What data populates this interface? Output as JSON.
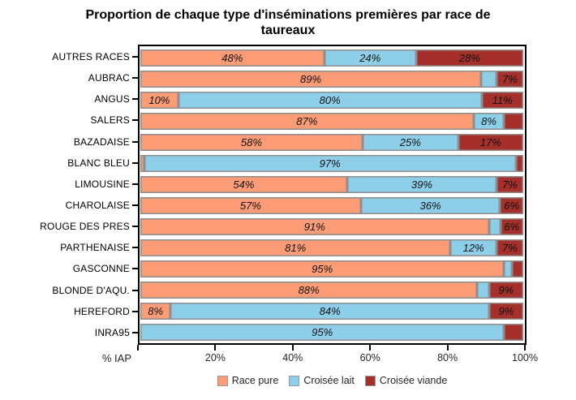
{
  "title_lines": [
    "Proportion de chaque type d'inséminations premières par race de",
    "taureaux"
  ],
  "chart_data": {
    "type": "bar",
    "orientation": "horizontal",
    "stacked": true,
    "title": "Proportion de chaque type d'inséminations premières par race de taureaux",
    "xlabel": "% IAP",
    "xlim": [
      0,
      100
    ],
    "grid": false,
    "legend_position": "bottom",
    "categories": [
      "AUTRES RACES",
      "AUBRAC",
      "ANGUS",
      "SALERS",
      "BAZADAISE",
      "BLANC BLEU",
      "LIMOUSINE",
      "CHAROLAISE",
      "ROUGE DES PRES",
      "PARTHENAISE",
      "GASCONNE",
      "BLONDE D'AQU.",
      "HEREFORD",
      "INRA95"
    ],
    "series": [
      {
        "name": "Race pure",
        "color": "#FB9C77",
        "values": [
          48,
          89,
          10,
          87,
          58,
          1,
          54,
          57,
          91,
          81,
          95,
          88,
          8,
          0
        ]
      },
      {
        "name": "Croisée lait",
        "color": "#8DCFE9",
        "values": [
          24,
          4,
          80,
          8,
          25,
          97,
          39,
          36,
          3,
          12,
          2,
          3,
          84,
          95
        ]
      },
      {
        "name": "Croisée viande",
        "color": "#A5302B",
        "values": [
          28,
          7,
          11,
          5,
          17,
          2,
          7,
          6,
          6,
          7,
          3,
          9,
          9,
          5
        ]
      }
    ],
    "value_labels": [
      [
        "48%",
        "24%",
        "28%"
      ],
      [
        "89%",
        "",
        "7%"
      ],
      [
        "10%",
        "80%",
        "11%"
      ],
      [
        "87%",
        "8%",
        ""
      ],
      [
        "58%",
        "25%",
        "17%"
      ],
      [
        "",
        "97%",
        ""
      ],
      [
        "54%",
        "39%",
        "7%"
      ],
      [
        "57%",
        "36%",
        "6%"
      ],
      [
        "91%",
        "",
        "6%"
      ],
      [
        "81%",
        "12%",
        "7%"
      ],
      [
        "95%",
        "",
        ""
      ],
      [
        "88%",
        "",
        "9%"
      ],
      [
        "8%",
        "84%",
        "9%"
      ],
      [
        "",
        "95%",
        ""
      ]
    ],
    "x_ticks": [
      {
        "value": 0,
        "label": ""
      },
      {
        "value": 20,
        "label": "20%"
      },
      {
        "value": 40,
        "label": "40%"
      },
      {
        "value": 60,
        "label": "60%"
      },
      {
        "value": 80,
        "label": "80%"
      },
      {
        "value": 100,
        "label": "100%"
      }
    ],
    "colors": {
      "bar_outline": "#8E8E8E",
      "plot_border": "#000000"
    }
  }
}
